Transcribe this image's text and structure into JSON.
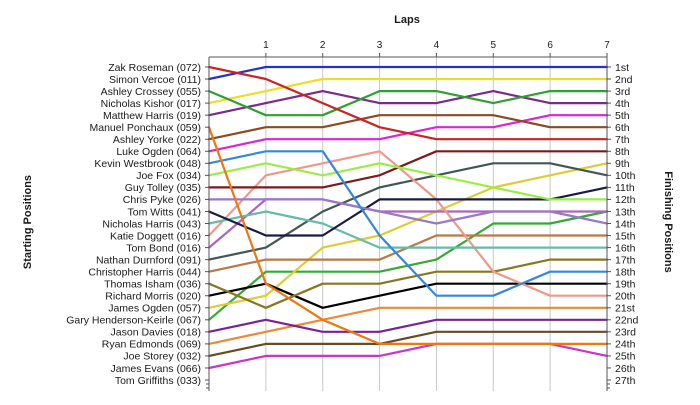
{
  "chart_data": {
    "type": "line",
    "title": "Laps",
    "xlabel": "Laps",
    "ylabel_left": "Starting Positions",
    "ylabel_right": "Finishing Positions",
    "x": [
      0,
      1,
      2,
      3,
      4,
      5,
      6,
      7
    ],
    "xlim": [
      0,
      7
    ],
    "ylim": [
      1,
      27
    ],
    "y_inverted": true,
    "grid": true,
    "legend": "none",
    "finish_labels": [
      "1st",
      "2nd",
      "3rd",
      "4th",
      "5th",
      "6th",
      "7th",
      "8th",
      "9th",
      "10th",
      "11th",
      "12th",
      "13th",
      "14th",
      "15th",
      "16th",
      "17th",
      "18th",
      "19th",
      "20th",
      "21st",
      "22nd",
      "23rd",
      "24th",
      "25th",
      "26th",
      "27th"
    ],
    "series": [
      {
        "name": "Zak Roseman (072)",
        "color": "#cc2222",
        "values": [
          1,
          2,
          4,
          6,
          7,
          7,
          7,
          7
        ]
      },
      {
        "name": "Simon Vercoe (011)",
        "color": "#2233cc",
        "values": [
          2,
          1,
          1,
          1,
          1,
          1,
          1,
          1
        ]
      },
      {
        "name": "Ashley Crossey (055)",
        "color": "#2ea02e",
        "values": [
          3,
          5,
          5,
          3,
          3,
          4,
          3,
          3
        ]
      },
      {
        "name": "Nicholas Kishor (017)",
        "color": "#eedd22",
        "values": [
          4,
          3,
          2,
          2,
          2,
          2,
          2,
          2
        ]
      },
      {
        "name": "Matthew Harris (019)",
        "color": "#7a2a8a",
        "values": [
          5,
          4,
          3,
          4,
          4,
          3,
          4,
          4
        ]
      },
      {
        "name": "Manuel Ponchaux (059)",
        "color": "#ee7711",
        "values": [
          6,
          19,
          22,
          24,
          24,
          24,
          24,
          24
        ]
      },
      {
        "name": "Ashley Yorke (022)",
        "color": "#8b4a22",
        "values": [
          7,
          6,
          6,
          5,
          5,
          5,
          6,
          6
        ]
      },
      {
        "name": "Luke Ogden (064)",
        "color": "#dd22dd",
        "values": [
          8,
          7,
          7,
          7,
          6,
          6,
          5,
          5
        ]
      },
      {
        "name": "Kevin Westbrook (048)",
        "color": "#3388dd",
        "values": [
          9,
          8,
          8,
          15,
          20,
          20,
          18,
          18
        ]
      },
      {
        "name": "Joe Fox (034)",
        "color": "#99ee44",
        "values": [
          10,
          9,
          10,
          9,
          10,
          11,
          12,
          12
        ]
      },
      {
        "name": "Guy Tolley (035)",
        "color": "#7a1a1a",
        "values": [
          11,
          11,
          11,
          10,
          8,
          8,
          8,
          8
        ]
      },
      {
        "name": "Chris Pyke (026)",
        "color": "#9977cc",
        "values": [
          12,
          12,
          12,
          13,
          14,
          13,
          13,
          14
        ]
      },
      {
        "name": "Tom Witts (041)",
        "color": "#1a1a44",
        "values": [
          13,
          15,
          15,
          12,
          12,
          12,
          12,
          11
        ]
      },
      {
        "name": "Nicholas Harris (043)",
        "color": "#66bbaa",
        "values": [
          14,
          13,
          14,
          16,
          16,
          16,
          16,
          16
        ]
      },
      {
        "name": "Katie Doggett (016)",
        "color": "#ee9988",
        "values": [
          15,
          10,
          9,
          8,
          12,
          18,
          20,
          20
        ]
      },
      {
        "name": "Tom Bond (016)",
        "color": "#aa66bb",
        "values": [
          16,
          12,
          12,
          13,
          13,
          13,
          13,
          13
        ]
      },
      {
        "name": "Nathan Durnford (091)",
        "color": "#445555",
        "values": [
          17,
          16,
          13,
          11,
          10,
          9,
          9,
          10
        ]
      },
      {
        "name": "Christopher Harris (044)",
        "color": "#bb7744",
        "values": [
          18,
          17,
          17,
          17,
          15,
          15,
          15,
          15
        ]
      },
      {
        "name": "Thomas Isham (036)",
        "color": "#887722",
        "values": [
          19,
          21,
          19,
          19,
          18,
          18,
          17,
          17
        ]
      },
      {
        "name": "Richard Morris (020)",
        "color": "#000000",
        "values": [
          20,
          19,
          21,
          20,
          19,
          19,
          19,
          19
        ]
      },
      {
        "name": "James Ogden (057)",
        "color": "#ddcc33",
        "values": [
          21,
          20,
          16,
          15,
          13,
          11,
          10,
          9
        ]
      },
      {
        "name": "Gary Henderson-Keirle (067)",
        "color": "#33aa33",
        "values": [
          22,
          18,
          18,
          18,
          17,
          14,
          14,
          13
        ]
      },
      {
        "name": "Jason Davies (018)",
        "color": "#772299",
        "values": [
          23,
          22,
          23,
          23,
          22,
          22,
          22,
          22
        ]
      },
      {
        "name": "Ryan Edmonds (069)",
        "color": "#ee8833",
        "values": [
          24,
          23,
          22,
          21,
          21,
          21,
          21,
          21
        ]
      },
      {
        "name": "Joe Storey (032)",
        "color": "#6b4a22",
        "values": [
          25,
          24,
          24,
          24,
          23,
          23,
          23,
          23
        ]
      },
      {
        "name": "James Evans (066)",
        "color": "#cc33cc",
        "values": [
          26,
          25,
          25,
          25,
          24,
          24,
          24,
          25
        ]
      },
      {
        "name": "Tom Griffiths (033)",
        "color": "#333333",
        "values": [
          27,
          null,
          null,
          null,
          null,
          null,
          null,
          null
        ]
      }
    ]
  }
}
